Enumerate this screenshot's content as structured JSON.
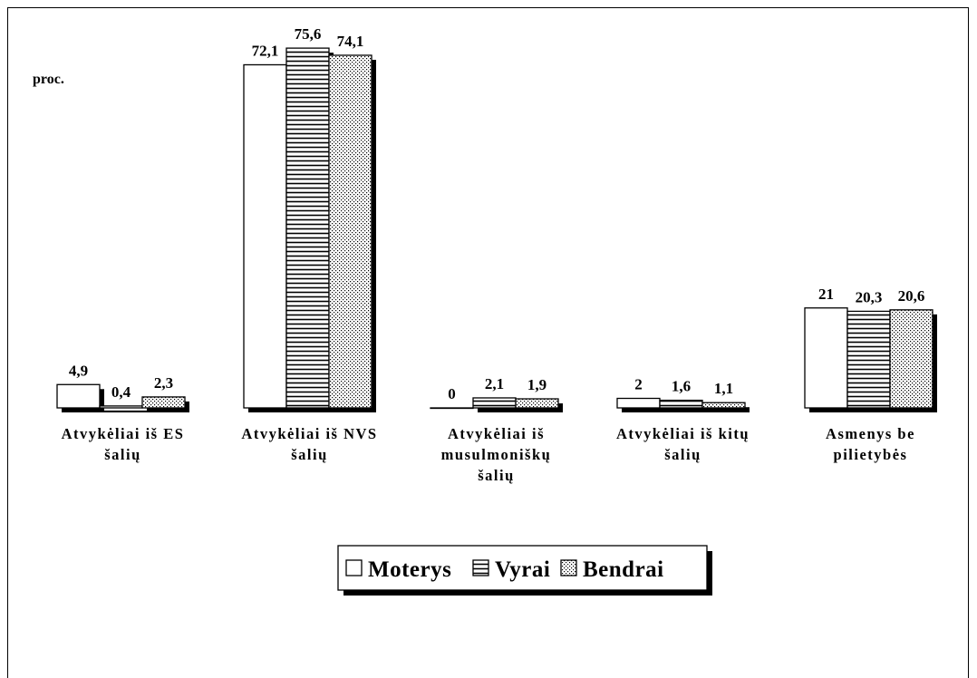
{
  "chart_data": {
    "type": "bar",
    "ylabel": "proc.",
    "categories": [
      [
        "Atvykėliai iš ES",
        "šalių"
      ],
      [
        "Atvykėliai iš NVS",
        "šalių"
      ],
      [
        "Atvykėliai iš",
        "musulmoniškų",
        "šalių"
      ],
      [
        "Atvykėliai iš kitų",
        "šalių"
      ],
      [
        "Asmenys be",
        "pilietybės"
      ]
    ],
    "series": [
      {
        "name": "Moterys",
        "values": [
          4.9,
          72.1,
          0,
          2,
          21
        ],
        "labels": [
          "4,9",
          "72,1",
          "0",
          "2",
          "21"
        ],
        "pattern": "plain"
      },
      {
        "name": "Vyrai",
        "values": [
          0.4,
          75.6,
          2.1,
          1.6,
          20.3
        ],
        "labels": [
          "0,4",
          "75,6",
          "2,1",
          "1,6",
          "20,3"
        ],
        "pattern": "horizontal-lines"
      },
      {
        "name": "Bendrai",
        "values": [
          2.3,
          74.1,
          1.9,
          1.1,
          20.6
        ],
        "labels": [
          "2,3",
          "74,1",
          "1,9",
          "1,1",
          "20,6"
        ],
        "pattern": "dots"
      }
    ],
    "legend_position": "bottom-center",
    "grid": false
  }
}
